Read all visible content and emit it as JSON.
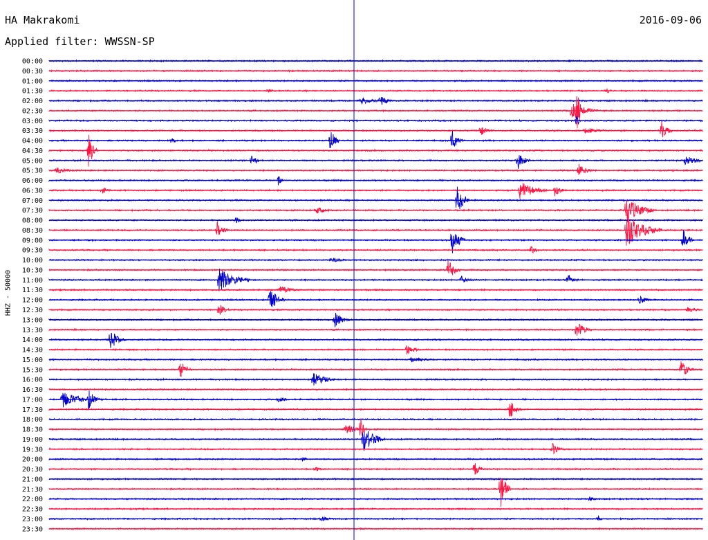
{
  "header": {
    "station": "HA Makrakomi",
    "date": "2016-09-06",
    "filter": "Applied filter: WWSSN-SP"
  },
  "chart_data": {
    "type": "line",
    "title": "HA Makrakomi",
    "ylabel": "HHZ - 50000",
    "rows": [
      "00:00",
      "00:30",
      "01:00",
      "01:30",
      "02:00",
      "02:30",
      "03:00",
      "03:30",
      "04:00",
      "04:30",
      "05:00",
      "05:30",
      "06:00",
      "06:30",
      "07:00",
      "07:30",
      "08:00",
      "08:30",
      "09:00",
      "09:30",
      "10:00",
      "10:30",
      "11:00",
      "11:30",
      "12:00",
      "12:30",
      "13:00",
      "13:30",
      "14:00",
      "14:30",
      "15:00",
      "15:30",
      "16:00",
      "16:30",
      "17:00",
      "17:30",
      "18:00",
      "18:30",
      "19:00",
      "19:30",
      "20:00",
      "20:30",
      "21:00",
      "21:30",
      "22:00",
      "22:30",
      "23:00",
      "23:30"
    ],
    "row_colors": [
      "#0000cc",
      "#ff1744"
    ],
    "trace_span_minutes": 30,
    "time_marker_minutes": 14.0,
    "events": [
      {
        "row": 3,
        "minute": 10.0,
        "amp": 3,
        "dur": 0.8
      },
      {
        "row": 3,
        "minute": 25.6,
        "amp": 5,
        "dur": 0.3
      },
      {
        "row": 4,
        "minute": 14.3,
        "amp": 6,
        "dur": 1.2
      },
      {
        "row": 4,
        "minute": 15.2,
        "amp": 8,
        "dur": 0.6
      },
      {
        "row": 5,
        "minute": 24.0,
        "amp": 14,
        "dur": 1.2
      },
      {
        "row": 5,
        "minute": 24.2,
        "amp": 40,
        "dur": 0.3
      },
      {
        "row": 6,
        "minute": 24.2,
        "amp": 12,
        "dur": 0.2
      },
      {
        "row": 7,
        "minute": 19.8,
        "amp": 7,
        "dur": 0.7
      },
      {
        "row": 7,
        "minute": 24.6,
        "amp": 5,
        "dur": 1.4
      },
      {
        "row": 7,
        "minute": 28.1,
        "amp": 16,
        "dur": 0.5
      },
      {
        "row": 8,
        "minute": 5.6,
        "amp": 8,
        "dur": 0.3
      },
      {
        "row": 8,
        "minute": 12.9,
        "amp": 22,
        "dur": 0.4
      },
      {
        "row": 8,
        "minute": 18.5,
        "amp": 15,
        "dur": 0.5
      },
      {
        "row": 9,
        "minute": 1.8,
        "amp": 28,
        "dur": 0.4
      },
      {
        "row": 10,
        "minute": 9.3,
        "amp": 8,
        "dur": 0.5
      },
      {
        "row": 10,
        "minute": 21.5,
        "amp": 14,
        "dur": 0.6
      },
      {
        "row": 10,
        "minute": 29.2,
        "amp": 7,
        "dur": 1.3
      },
      {
        "row": 11,
        "minute": 0.3,
        "amp": 5,
        "dur": 1.2
      },
      {
        "row": 11,
        "minute": 24.3,
        "amp": 10,
        "dur": 0.7
      },
      {
        "row": 12,
        "minute": 10.5,
        "amp": 8,
        "dur": 0.3
      },
      {
        "row": 13,
        "minute": 2.4,
        "amp": 7,
        "dur": 0.5
      },
      {
        "row": 13,
        "minute": 21.6,
        "amp": 14,
        "dur": 1.3
      },
      {
        "row": 13,
        "minute": 23.2,
        "amp": 10,
        "dur": 0.5
      },
      {
        "row": 14,
        "minute": 18.7,
        "amp": 24,
        "dur": 0.6
      },
      {
        "row": 15,
        "minute": 12.2,
        "amp": 6,
        "dur": 1.0
      },
      {
        "row": 15,
        "minute": 26.5,
        "amp": 20,
        "dur": 1.3
      },
      {
        "row": 16,
        "minute": 8.6,
        "amp": 6,
        "dur": 0.3
      },
      {
        "row": 17,
        "minute": 7.7,
        "amp": 14,
        "dur": 0.5
      },
      {
        "row": 17,
        "minute": 26.5,
        "amp": 24,
        "dur": 1.6
      },
      {
        "row": 18,
        "minute": 18.5,
        "amp": 20,
        "dur": 0.6
      },
      {
        "row": 18,
        "minute": 29.1,
        "amp": 20,
        "dur": 0.5
      },
      {
        "row": 19,
        "minute": 22.1,
        "amp": 7,
        "dur": 0.5
      },
      {
        "row": 20,
        "minute": 12.9,
        "amp": 4,
        "dur": 1.2
      },
      {
        "row": 21,
        "minute": 18.3,
        "amp": 18,
        "dur": 0.6
      },
      {
        "row": 22,
        "minute": 7.8,
        "amp": 18,
        "dur": 1.4
      },
      {
        "row": 22,
        "minute": 18.9,
        "amp": 6,
        "dur": 0.8
      },
      {
        "row": 22,
        "minute": 23.8,
        "amp": 10,
        "dur": 0.5
      },
      {
        "row": 23,
        "minute": 10.6,
        "amp": 6,
        "dur": 1.1
      },
      {
        "row": 24,
        "minute": 10.1,
        "amp": 20,
        "dur": 0.7
      },
      {
        "row": 24,
        "minute": 27.1,
        "amp": 7,
        "dur": 0.6
      },
      {
        "row": 25,
        "minute": 7.8,
        "amp": 10,
        "dur": 0.5
      },
      {
        "row": 25,
        "minute": 29.3,
        "amp": 4,
        "dur": 1.0
      },
      {
        "row": 26,
        "minute": 13.1,
        "amp": 12,
        "dur": 0.7
      },
      {
        "row": 27,
        "minute": 24.2,
        "amp": 14,
        "dur": 0.7
      },
      {
        "row": 28,
        "minute": 2.8,
        "amp": 16,
        "dur": 0.7
      },
      {
        "row": 29,
        "minute": 16.4,
        "amp": 9,
        "dur": 0.7
      },
      {
        "row": 30,
        "minute": 16.6,
        "amp": 4,
        "dur": 1.6
      },
      {
        "row": 31,
        "minute": 6.0,
        "amp": 14,
        "dur": 0.6
      },
      {
        "row": 31,
        "minute": 29.0,
        "amp": 14,
        "dur": 0.6
      },
      {
        "row": 32,
        "minute": 12.1,
        "amp": 10,
        "dur": 1.2
      },
      {
        "row": 34,
        "minute": 0.6,
        "amp": 12,
        "dur": 1.6
      },
      {
        "row": 34,
        "minute": 1.8,
        "amp": 16,
        "dur": 0.5
      },
      {
        "row": 34,
        "minute": 10.5,
        "amp": 4,
        "dur": 0.8
      },
      {
        "row": 35,
        "minute": 21.1,
        "amp": 16,
        "dur": 0.6
      },
      {
        "row": 37,
        "minute": 13.6,
        "amp": 8,
        "dur": 1.0
      },
      {
        "row": 37,
        "minute": 14.3,
        "amp": 20,
        "dur": 0.3
      },
      {
        "row": 38,
        "minute": 14.4,
        "amp": 20,
        "dur": 1.0
      },
      {
        "row": 39,
        "minute": 23.1,
        "amp": 10,
        "dur": 0.5
      },
      {
        "row": 40,
        "minute": 11.6,
        "amp": 6,
        "dur": 0.3
      },
      {
        "row": 41,
        "minute": 12.2,
        "amp": 4,
        "dur": 0.6
      },
      {
        "row": 41,
        "minute": 19.5,
        "amp": 12,
        "dur": 0.5
      },
      {
        "row": 43,
        "minute": 20.7,
        "amp": 32,
        "dur": 0.5
      },
      {
        "row": 44,
        "minute": 24.8,
        "amp": 4,
        "dur": 0.5
      },
      {
        "row": 46,
        "minute": 12.5,
        "amp": 4,
        "dur": 0.8
      },
      {
        "row": 46,
        "minute": 25.2,
        "amp": 5,
        "dur": 0.3
      }
    ]
  }
}
